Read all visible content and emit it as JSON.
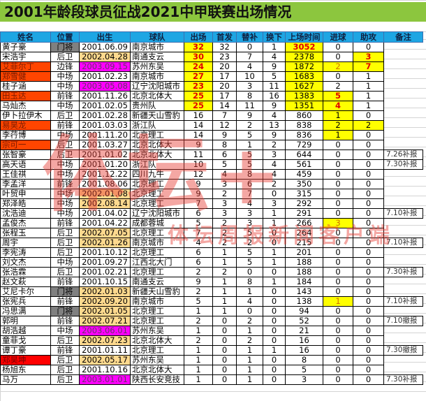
{
  "title": "2001年龄段球员征战2021中甲联赛出场情况",
  "columns": [
    "姓名",
    "位置",
    "出生",
    "球队",
    "出场",
    "首发",
    "替补",
    "换下",
    "上场时间",
    "进球",
    "助攻",
    "备注"
  ],
  "colors": {
    "title_bg": "#8cc63e",
    "header_bg": "#1ea6e3",
    "highlight": "#ffff00",
    "born_2002": "#fed98e",
    "born_2003": "#ff00ff",
    "goalkeeper": "#808080",
    "name_flag": "#ff4500",
    "name_flag_strong": "#ff0000"
  },
  "watermark": {
    "logo": "体坛+",
    "sub": "体坛周报新闻客户端"
  },
  "rows": [
    {
      "name": "黄子豪",
      "pos": "门将",
      "born": "2001.06.09",
      "team": "南京城市",
      "apps": "32",
      "starts": "32",
      "subs": "0",
      "off": "1",
      "minutes": "3052",
      "goals": "0",
      "assists": "0",
      "note": "",
      "flag": "",
      "yellow": [
        "apps",
        "minutes"
      ],
      "bold": [
        "apps",
        "minutes"
      ]
    },
    {
      "name": "宋浩宇",
      "pos": "后卫",
      "born": "2002.04.28",
      "team": "南通支云",
      "apps": "30",
      "starts": "23",
      "subs": "7",
      "off": "4",
      "minutes": "2378",
      "goals": "0",
      "assists": "3",
      "note": "",
      "flag": "",
      "yellow": [
        "apps",
        "minutes",
        "assists"
      ],
      "bold": [
        "apps",
        "assists"
      ]
    },
    {
      "name": "艾菲尔丁",
      "pos": "边锋",
      "born": "2003.09.15",
      "team": "苏州东吴",
      "apps": "24",
      "starts": "20",
      "subs": "4",
      "off": "9",
      "minutes": "1872",
      "goals": "2",
      "assists": "7",
      "note": "",
      "flag": "orange-red",
      "yellow": [
        "apps",
        "minutes",
        "goals",
        "assists"
      ],
      "bold": [
        "apps",
        "assists"
      ],
      "orange": [
        "goals"
      ]
    },
    {
      "name": "郑雪健",
      "pos": "中场",
      "born": "2001.02.23",
      "team": "南京城市",
      "apps": "27",
      "starts": "17",
      "subs": "10",
      "off": "5",
      "minutes": "1683",
      "goals": "0",
      "assists": "1",
      "note": "",
      "flag": "orange-red",
      "yellow": [
        "apps",
        "minutes"
      ],
      "bold": [
        "apps"
      ]
    },
    {
      "name": "桂子涵",
      "pos": "中场",
      "born": "2003.05.08",
      "team": "辽宁沈阳城市",
      "apps": "23",
      "starts": "20",
      "subs": "3",
      "off": "11",
      "minutes": "1627",
      "goals": "2",
      "assists": "1",
      "note": "",
      "flag": "",
      "yellow": [
        "apps",
        "minutes"
      ],
      "bold": [
        "apps"
      ]
    },
    {
      "name": "田玉达",
      "pos": "前锋",
      "born": "2001.11.26",
      "team": "北京北体大",
      "apps": "25",
      "starts": "17",
      "subs": "8",
      "off": "16",
      "minutes": "1383",
      "goals": "5",
      "assists": "1",
      "note": "",
      "flag": "orange-red",
      "yellow": [
        "apps",
        "minutes",
        "goals"
      ],
      "bold": [
        "apps",
        "goals"
      ]
    },
    {
      "name": "马灿杰",
      "pos": "中场",
      "born": "2001.02.05",
      "team": "贵州队",
      "apps": "25",
      "starts": "14",
      "subs": "11",
      "off": "9",
      "minutes": "1351",
      "goals": "4",
      "assists": "1",
      "note": "",
      "flag": "",
      "yellow": [
        "apps",
        "minutes",
        "goals"
      ],
      "bold": [
        "apps",
        "goals"
      ]
    },
    {
      "name": "伊卜拉伊木",
      "pos": "后卫",
      "born": "2001.02.28",
      "team": "新疆天山雪豹",
      "apps": "16",
      "starts": "7",
      "subs": "9",
      "off": "4",
      "minutes": "860",
      "goals": "1",
      "assists": "0",
      "note": "",
      "flag": "",
      "yellow": [
        "goals"
      ]
    },
    {
      "name": "易昊龙",
      "pos": "前锋",
      "born": "2001.03.03",
      "team": "浙江队",
      "apps": "14",
      "starts": "12",
      "subs": "2",
      "off": "13",
      "minutes": "838",
      "goals": "2",
      "assists": "2",
      "note": "",
      "flag": "orange-red",
      "yellow": [
        "goals",
        "assists"
      ]
    },
    {
      "name": "李荇博",
      "pos": "中场",
      "born": "2001.11.20",
      "team": "北京理工",
      "apps": "14",
      "starts": "9",
      "subs": "5",
      "off": "9",
      "minutes": "836",
      "goals": "1",
      "assists": "0",
      "note": "",
      "flag": "",
      "yellow": [
        "goals"
      ]
    },
    {
      "name": "宗可一",
      "pos": "后卫",
      "born": "2001.03.27",
      "team": "北京北体大",
      "apps": "9",
      "starts": "8",
      "subs": "1",
      "off": "2",
      "minutes": "729",
      "goals": "0",
      "assists": "0",
      "note": "",
      "flag": "orange-red"
    },
    {
      "name": "张智豪",
      "pos": "后卫",
      "born": "2001.01.02",
      "team": "北京北体大",
      "apps": "11",
      "starts": "6",
      "subs": "5",
      "off": "3",
      "minutes": "644",
      "goals": "0",
      "assists": "0",
      "note": "7.26补报",
      "flag": ""
    },
    {
      "name": "高天语",
      "pos": "中场",
      "born": "2001.01.20",
      "team": "浙江队",
      "apps": "10",
      "starts": "5",
      "subs": "5",
      "off": "4",
      "minutes": "561",
      "goals": "0",
      "assists": "0",
      "note": "7.30补报",
      "flag": ""
    },
    {
      "name": "王佳祺",
      "pos": "中场",
      "born": "2001.12.22",
      "team": "四川九牛",
      "apps": "12",
      "starts": "4",
      "subs": "8",
      "off": "4",
      "minutes": "459",
      "goals": "0",
      "assists": "0",
      "note": "",
      "flag": ""
    },
    {
      "name": "李孟洋",
      "pos": "前锋",
      "born": "2001.08.06",
      "team": "北京理工",
      "apps": "9",
      "starts": "3",
      "subs": "6",
      "off": "2",
      "minutes": "350",
      "goals": "0",
      "assists": "0",
      "note": "",
      "flag": ""
    },
    {
      "name": "叶贸申",
      "pos": "中场",
      "born": "2002.01.08",
      "team": "北京理工",
      "apps": "9",
      "starts": "2",
      "subs": "7",
      "off": "0",
      "minutes": "315",
      "goals": "0",
      "assists": "0",
      "note": "",
      "flag": ""
    },
    {
      "name": "郑泽皓",
      "pos": "中场",
      "born": "2002.08.14",
      "team": "北京理工",
      "apps": "7",
      "starts": "3",
      "subs": "4",
      "off": "3",
      "minutes": "292",
      "goals": "0",
      "assists": "0",
      "note": "",
      "flag": ""
    },
    {
      "name": "沈浩迪",
      "pos": "中场",
      "born": "2001.04.02",
      "team": "辽宁沈阳城市",
      "apps": "6",
      "starts": "3",
      "subs": "3",
      "off": "1",
      "minutes": "291",
      "goals": "0",
      "assists": "0",
      "note": "7.10补报",
      "flag": ""
    },
    {
      "name": "孟俊杰",
      "pos": "前锋",
      "born": "2001.04.22",
      "team": "成都蓉城",
      "apps": "5",
      "starts": "2",
      "subs": "3",
      "off": "1",
      "minutes": "266",
      "goals": "3",
      "assists": "0",
      "note": "",
      "flag": "",
      "yellow": [
        "goals"
      ],
      "orange": [
        "goals"
      ]
    },
    {
      "name": "张程玉",
      "pos": "后卫",
      "born": "2002.07.05",
      "team": "北京理工",
      "apps": "7",
      "starts": "2",
      "subs": "5",
      "off": "0",
      "minutes": "264",
      "goals": "0",
      "assists": "0",
      "note": "",
      "flag": ""
    },
    {
      "name": "周宇",
      "pos": "后卫",
      "born": "2002.01.26",
      "team": "南京城市",
      "apps": "4",
      "starts": "2",
      "subs": "2",
      "off": "0",
      "minutes": "215",
      "goals": "0",
      "assists": "0",
      "note": "7.10补报",
      "flag": ""
    },
    {
      "name": "李宪涛",
      "pos": "后卫",
      "born": "2001.10.12",
      "team": "北京理工",
      "apps": "6",
      "starts": "1",
      "subs": "5",
      "off": "1",
      "minutes": "201",
      "goals": "0",
      "assists": "0",
      "note": "",
      "flag": ""
    },
    {
      "name": "刘文杰",
      "pos": "中场",
      "born": "2001.09.27",
      "team": "江西北大门",
      "apps": "6",
      "starts": "1",
      "subs": "5",
      "off": "1",
      "minutes": "188",
      "goals": "0",
      "assists": "0",
      "note": "",
      "flag": ""
    },
    {
      "name": "张浩霖",
      "pos": "后卫",
      "born": "2001.02.21",
      "team": "北京理工",
      "apps": "2",
      "starts": "2",
      "subs": "0",
      "off": "0",
      "minutes": "188",
      "goals": "0",
      "assists": "0",
      "note": "7.30补报",
      "flag": ""
    },
    {
      "name": "赵文萩",
      "pos": "前锋",
      "born": "2001.10.15",
      "team": "南通支云",
      "apps": "9",
      "starts": "1",
      "subs": "8",
      "off": "1",
      "minutes": "184",
      "goals": "0",
      "assists": "0",
      "note": "",
      "flag": ""
    },
    {
      "name": "艾尼卡尔",
      "pos": "门将",
      "born": "2002.01.03",
      "team": "新疆天山雪豹",
      "apps": "2",
      "starts": "1",
      "subs": "1",
      "off": "0",
      "minutes": "143",
      "goals": "0",
      "assists": "0",
      "note": "",
      "flag": ""
    },
    {
      "name": "张宪兵",
      "pos": "前锋",
      "born": "2002.09.20",
      "team": "南京城市",
      "apps": "5",
      "starts": "1",
      "subs": "4",
      "off": "0",
      "minutes": "138",
      "goals": "1",
      "assists": "0",
      "note": "7.10补报",
      "flag": "",
      "yellow": [
        "goals"
      ],
      "orange": [
        "goals"
      ]
    },
    {
      "name": "冯思满",
      "pos": "门将",
      "born": "2002.01.05",
      "team": "北京理工",
      "apps": "1",
      "starts": "1",
      "subs": "0",
      "off": "0",
      "minutes": "94",
      "goals": "0",
      "assists": "0",
      "note": "",
      "flag": ""
    },
    {
      "name": "郭明",
      "pos": "前锋",
      "born": "2002.07.21",
      "team": "北京理工",
      "apps": "2",
      "starts": "0",
      "subs": "2",
      "off": "0",
      "minutes": "52",
      "goals": "0",
      "assists": "0",
      "note": "7.10撤报",
      "flag": ""
    },
    {
      "name": "胡浩越",
      "pos": "中场",
      "born": "2003.06.01",
      "team": "苏州东吴",
      "apps": "1",
      "starts": "0",
      "subs": "1",
      "off": "0",
      "minutes": "21",
      "goals": "0",
      "assists": "0",
      "note": "",
      "flag": ""
    },
    {
      "name": "童菲戈",
      "pos": "后卫",
      "born": "2002.07.23",
      "team": "北京北体大",
      "apps": "2",
      "starts": "0",
      "subs": "2",
      "off": "0",
      "minutes": "16",
      "goals": "0",
      "assists": "0",
      "note": "",
      "flag": ""
    },
    {
      "name": "谭丁豪",
      "pos": "前锋",
      "born": "2001.01.11",
      "team": "北京理工",
      "apps": "1",
      "starts": "0",
      "subs": "1",
      "off": "1",
      "minutes": "16",
      "goals": "0",
      "assists": "0",
      "note": "7.30撤报",
      "flag": ""
    },
    {
      "name": "郑昊坤",
      "pos": "后卫",
      "born": "2002.05.17",
      "team": "苏州东吴",
      "apps": "1",
      "starts": "0",
      "subs": "1",
      "off": "0",
      "minutes": "8",
      "goals": "0",
      "assists": "0",
      "note": "",
      "flag": "red"
    },
    {
      "name": "杨旭东",
      "pos": "后卫",
      "born": "2001.10.16",
      "team": "北京北体大",
      "apps": "1",
      "starts": "0",
      "subs": "1",
      "off": "0",
      "minutes": "5",
      "goals": "0",
      "assists": "0",
      "note": "",
      "flag": ""
    },
    {
      "name": "马万",
      "pos": "后卫",
      "born": "2003.01.01",
      "team": "陕西长安竞技",
      "apps": "1",
      "starts": "0",
      "subs": "1",
      "off": "0",
      "minutes": "3",
      "goals": "0",
      "assists": "0",
      "note": "7.30补报",
      "flag": ""
    }
  ]
}
